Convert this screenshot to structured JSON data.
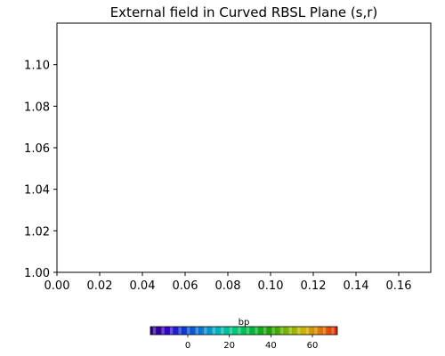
{
  "chart_data": {
    "type": "heatmap",
    "title": "External field in Curved RBSL Plane (s,r)",
    "xlabel": "",
    "ylabel": "",
    "xlim": [
      0.0,
      0.175
    ],
    "ylim": [
      1.0,
      1.12
    ],
    "x_ticks": [
      0.0,
      0.02,
      0.04,
      0.06,
      0.08,
      0.1,
      0.12,
      0.14,
      0.16
    ],
    "x_tick_labels": [
      "0.00",
      "0.02",
      "0.04",
      "0.06",
      "0.08",
      "0.10",
      "0.12",
      "0.14",
      "0.16"
    ],
    "y_ticks": [
      1.0,
      1.02,
      1.04,
      1.06,
      1.08,
      1.1
    ],
    "y_tick_labels": [
      "1.00",
      "1.02",
      "1.04",
      "1.06",
      "1.08",
      "1.10"
    ],
    "grid": false,
    "values": [],
    "colorbar": {
      "label": "bp",
      "orientation": "horizontal",
      "range": [
        -18,
        72
      ],
      "ticks": [
        0,
        20,
        40,
        60
      ],
      "tick_labels": [
        "0",
        "20",
        "40",
        "60"
      ],
      "colormap": [
        "#2a0078",
        "#3a00c8",
        "#0a3cd2",
        "#0a78d2",
        "#00b4be",
        "#00c878",
        "#00b43c",
        "#1ea000",
        "#78b400",
        "#c8b400",
        "#dc7800",
        "#e61e00"
      ]
    }
  }
}
